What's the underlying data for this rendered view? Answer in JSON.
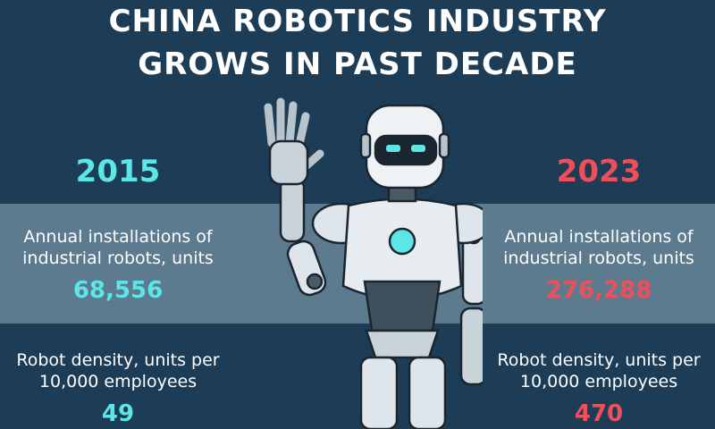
{
  "title_lines": [
    "CHINA ROBOTICS INDUSTRY",
    "GROWS IN PAST DECADE"
  ],
  "columns": [
    {
      "year": "2015",
      "installations_label": "Annual installations of industrial robots, units",
      "installations": "68,556",
      "density_label": "Robot density, units per 10,000 employees",
      "density": "49"
    },
    {
      "year": "2023",
      "installations_label": "Annual installations of industrial robots, units",
      "installations": "276,288",
      "density_label": "Robot density, units per 10,000 employees",
      "density": "470"
    }
  ]
}
